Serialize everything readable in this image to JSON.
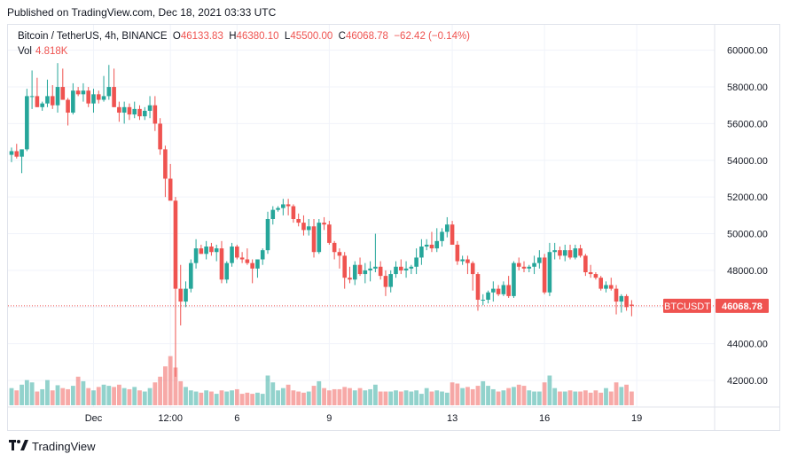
{
  "caption": "Published on TradingView.com, Dec 18, 2021 03:33 UTC",
  "legend": {
    "symbol": "Bitcoin / TetherUS, 4h, BINANCE",
    "o_label": "O",
    "o_value": "46133.83",
    "h_label": "H",
    "h_value": "46380.10",
    "l_label": "L",
    "l_value": "45500.00",
    "c_label": "C",
    "c_value": "46068.78",
    "change": "−62.42 (−0.14%)",
    "vol_label": "Vol",
    "vol_value": "4.818K"
  },
  "price_tag": {
    "symbol": "BTCUSDT",
    "price": "46068.78"
  },
  "footer": {
    "brand": "TradingView"
  },
  "colors": {
    "up": "#26a69a",
    "down": "#ef5350",
    "grid": "#f0f3fa",
    "text": "#131722"
  },
  "chart_data": {
    "type": "candlestick",
    "timeframe": "4h",
    "y_ticks": [
      "60000.00",
      "58000.00",
      "56000.00",
      "54000.00",
      "52000.00",
      "50000.00",
      "48000.00",
      "46000.00",
      "44000.00",
      "42000.00"
    ],
    "ylim": [
      40600,
      61000
    ],
    "x_ticks": [
      {
        "label": "Dec",
        "index": 16
      },
      {
        "label": "12:00",
        "index": 31
      },
      {
        "label": "6",
        "index": 44
      },
      {
        "label": "9",
        "index": 62
      },
      {
        "label": "13",
        "index": 86
      },
      {
        "label": "16",
        "index": 104
      },
      {
        "label": "19",
        "index": 122
      }
    ],
    "last_price": 46068.78,
    "candles": [
      [
        54300,
        54700,
        53900,
        54500,
        3.0
      ],
      [
        54500,
        54900,
        54100,
        54200,
        2.6
      ],
      [
        54200,
        54400,
        53300,
        54600,
        3.6
      ],
      [
        54600,
        57900,
        54500,
        57500,
        4.4
      ],
      [
        57500,
        58900,
        56800,
        57500,
        4.0
      ],
      [
        57500,
        58500,
        56900,
        56900,
        2.4
      ],
      [
        56900,
        57200,
        56700,
        57100,
        2.8
      ],
      [
        57100,
        58400,
        56900,
        57500,
        4.4
      ],
      [
        57500,
        58100,
        56800,
        57000,
        2.6
      ],
      [
        57000,
        59300,
        56600,
        58000,
        3.5
      ],
      [
        58000,
        59000,
        57300,
        57300,
        3.0
      ],
      [
        57300,
        57400,
        55900,
        56600,
        2.8
      ],
      [
        56600,
        58200,
        56500,
        57800,
        3.4
      ],
      [
        57800,
        58000,
        57500,
        57600,
        5.0
      ],
      [
        57600,
        58200,
        57200,
        57800,
        4.2
      ],
      [
        57800,
        58000,
        56900,
        57100,
        3.0
      ],
      [
        57100,
        57900,
        56600,
        57600,
        2.6
      ],
      [
        57600,
        57800,
        57100,
        57300,
        3.2
      ],
      [
        57300,
        58600,
        57200,
        57500,
        3.6
      ],
      [
        57500,
        59200,
        57300,
        58000,
        3.4
      ],
      [
        58000,
        59000,
        56900,
        56900,
        3.2
      ],
      [
        56900,
        57200,
        56100,
        56600,
        3.6
      ],
      [
        56600,
        57200,
        56000,
        56900,
        3.0
      ],
      [
        56900,
        57100,
        56200,
        56500,
        2.8
      ],
      [
        56500,
        57200,
        56300,
        56800,
        3.2
      ],
      [
        56800,
        57000,
        56200,
        56400,
        2.6
      ],
      [
        56400,
        56900,
        56200,
        56700,
        2.4
      ],
      [
        56700,
        57500,
        56300,
        57000,
        3.0
      ],
      [
        57000,
        57500,
        55600,
        56000,
        4.0
      ],
      [
        56000,
        56300,
        54300,
        54600,
        5.0
      ],
      [
        54600,
        54800,
        52000,
        53000,
        6.8
      ],
      [
        53000,
        53800,
        52000,
        51800,
        8.6
      ],
      [
        51800,
        52000,
        42200,
        47000,
        6.6
      ],
      [
        47000,
        48300,
        45000,
        46300,
        4.2
      ],
      [
        46300,
        47400,
        46000,
        47000,
        3.2
      ],
      [
        47000,
        48600,
        46800,
        48400,
        2.6
      ],
      [
        48400,
        49700,
        48100,
        49200,
        2.4
      ],
      [
        49200,
        49400,
        48900,
        48900,
        2.2
      ],
      [
        48900,
        49600,
        48600,
        49300,
        2.6
      ],
      [
        49300,
        49500,
        48800,
        49000,
        2.4
      ],
      [
        49000,
        49400,
        48500,
        49200,
        2.0
      ],
      [
        49200,
        49600,
        47300,
        47500,
        2.6
      ],
      [
        47500,
        48500,
        47300,
        48400,
        2.4
      ],
      [
        48400,
        49500,
        48200,
        49300,
        2.6
      ],
      [
        49300,
        49400,
        48600,
        48700,
        2.8
      ],
      [
        48700,
        49000,
        48400,
        48600,
        2.0
      ],
      [
        48600,
        49200,
        48300,
        48400,
        2.2
      ],
      [
        48400,
        48600,
        47300,
        48100,
        2.0
      ],
      [
        48100,
        48600,
        47600,
        48600,
        2.2
      ],
      [
        48600,
        49200,
        48300,
        49100,
        2.0
      ],
      [
        49100,
        51200,
        48900,
        50800,
        5.2
      ],
      [
        50800,
        51500,
        50500,
        51300,
        4.0
      ],
      [
        51300,
        51500,
        51200,
        51400,
        2.6
      ],
      [
        51400,
        51900,
        51000,
        51600,
        3.0
      ],
      [
        51600,
        51900,
        51000,
        51500,
        3.6
      ],
      [
        51500,
        51600,
        50600,
        50800,
        2.6
      ],
      [
        50800,
        51100,
        50400,
        50600,
        2.4
      ],
      [
        50600,
        51000,
        49900,
        50200,
        2.2
      ],
      [
        50200,
        50800,
        49900,
        50400,
        2.4
      ],
      [
        50400,
        50800,
        48700,
        49000,
        3.4
      ],
      [
        49000,
        50800,
        48900,
        50600,
        4.2
      ],
      [
        50600,
        50900,
        50200,
        50500,
        3.0
      ],
      [
        50500,
        50700,
        49400,
        49500,
        2.6
      ],
      [
        49500,
        49600,
        48600,
        49000,
        2.8
      ],
      [
        49000,
        49200,
        48100,
        48800,
        2.8
      ],
      [
        48800,
        49000,
        47000,
        47600,
        3.2
      ],
      [
        47600,
        48200,
        47300,
        47500,
        3.0
      ],
      [
        47500,
        48500,
        47200,
        48300,
        2.6
      ],
      [
        48300,
        48700,
        47700,
        47800,
        3.0
      ],
      [
        47800,
        48400,
        47300,
        48000,
        2.6
      ],
      [
        48000,
        48500,
        47400,
        48100,
        2.8
      ],
      [
        48100,
        50000,
        47900,
        48200,
        3.6
      ],
      [
        48200,
        48500,
        47500,
        47700,
        2.4
      ],
      [
        47700,
        48000,
        46600,
        47100,
        2.4
      ],
      [
        47100,
        48000,
        46800,
        47800,
        2.4
      ],
      [
        47800,
        48500,
        47600,
        48200,
        2.6
      ],
      [
        48200,
        48600,
        47800,
        48000,
        2.4
      ],
      [
        48000,
        48500,
        47600,
        48100,
        2.6
      ],
      [
        48100,
        48300,
        47800,
        48200,
        2.4
      ],
      [
        48200,
        49200,
        47800,
        48700,
        2.6
      ],
      [
        48700,
        49700,
        48300,
        49300,
        2.0
      ],
      [
        49300,
        49700,
        49100,
        49400,
        3.0
      ],
      [
        49400,
        50100,
        49000,
        49200,
        2.4
      ],
      [
        49200,
        50300,
        49000,
        49600,
        2.6
      ],
      [
        49600,
        50300,
        49300,
        50100,
        2.4
      ],
      [
        50100,
        50900,
        49800,
        50500,
        2.2
      ],
      [
        50500,
        50700,
        49400,
        49400,
        4.0
      ],
      [
        49400,
        49600,
        48300,
        48500,
        3.8
      ],
      [
        48500,
        48800,
        48300,
        48600,
        3.0
      ],
      [
        48600,
        48800,
        47800,
        48400,
        3.2
      ],
      [
        48400,
        48500,
        46900,
        47800,
        2.8
      ],
      [
        47800,
        47900,
        45800,
        46400,
        3.4
      ],
      [
        46400,
        46700,
        46100,
        46400,
        4.2
      ],
      [
        46400,
        46900,
        46200,
        46800,
        3.4
      ],
      [
        46800,
        47400,
        46300,
        47000,
        2.8
      ],
      [
        47000,
        47200,
        46600,
        46700,
        2.4
      ],
      [
        46700,
        47400,
        46600,
        47200,
        2.6
      ],
      [
        47200,
        47700,
        46500,
        46600,
        3.0
      ],
      [
        46600,
        48500,
        46500,
        48400,
        3.2
      ],
      [
        48400,
        48700,
        48000,
        48200,
        3.6
      ],
      [
        48200,
        48500,
        47900,
        48100,
        3.4
      ],
      [
        48100,
        48300,
        47900,
        48200,
        2.6
      ],
      [
        48200,
        48800,
        47800,
        48400,
        2.4
      ],
      [
        48400,
        49100,
        48100,
        48700,
        2.4
      ],
      [
        48700,
        48900,
        46700,
        46800,
        4.0
      ],
      [
        46800,
        49500,
        46600,
        49000,
        5.2
      ],
      [
        49000,
        49500,
        48600,
        49100,
        3.0
      ],
      [
        49100,
        49300,
        48600,
        48800,
        2.4
      ],
      [
        48800,
        49400,
        48500,
        49100,
        2.4
      ],
      [
        49100,
        49400,
        48600,
        48700,
        2.6
      ],
      [
        48700,
        49400,
        48600,
        49200,
        2.4
      ],
      [
        49200,
        49400,
        48700,
        48800,
        2.4
      ],
      [
        48800,
        48900,
        47700,
        47900,
        2.6
      ],
      [
        47900,
        48300,
        47600,
        47800,
        2.2
      ],
      [
        47800,
        47900,
        47500,
        47600,
        2.6
      ],
      [
        47600,
        47700,
        46900,
        47000,
        2.2
      ],
      [
        47000,
        47400,
        46800,
        47200,
        3.0
      ],
      [
        47200,
        47600,
        46900,
        47000,
        2.4
      ],
      [
        47000,
        47200,
        45600,
        46300,
        4.0
      ],
      [
        46300,
        46700,
        45700,
        46600,
        3.2
      ],
      [
        46600,
        46700,
        45800,
        46000,
        3.6
      ],
      [
        46133.83,
        46380.1,
        45500,
        46068.78,
        2.4
      ]
    ]
  }
}
